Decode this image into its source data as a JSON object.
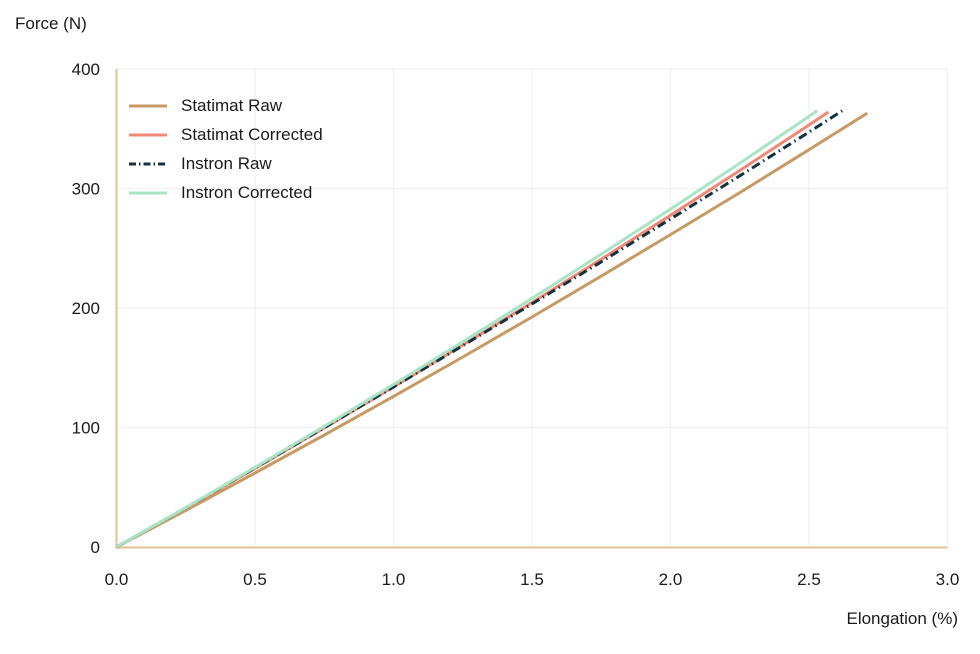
{
  "chart_data": {
    "type": "line",
    "title": "",
    "xlabel": "Elongation (%)",
    "ylabel": "Force (N)",
    "xlim": [
      0.0,
      3.0
    ],
    "ylim": [
      0,
      400
    ],
    "x_ticks": [
      "0.0",
      "0.5",
      "1.0",
      "1.5",
      "2.0",
      "2.5",
      "3.0"
    ],
    "y_ticks": [
      "0",
      "100",
      "200",
      "300",
      "400"
    ],
    "grid": true,
    "legend_position": "top-left-inside",
    "colors": {
      "axis": "#E4C59C",
      "grid": "#F0F0F0",
      "text": "#1A1A1A",
      "background": "#FFFFFF"
    },
    "series": [
      {
        "name": "Statimat Raw",
        "color": "#C79A63",
        "dash": null,
        "legend_dash": null,
        "points": [
          [
            0,
            0
          ],
          [
            0.25,
            30.6
          ],
          [
            0.5,
            61.9
          ],
          [
            0.75,
            93.7
          ],
          [
            1,
            126
          ],
          [
            1.25,
            159
          ],
          [
            1.5,
            192.5
          ],
          [
            1.75,
            226.7
          ],
          [
            2,
            261.4
          ],
          [
            2.25,
            296.6
          ],
          [
            2.5,
            332.5
          ],
          [
            2.71,
            363
          ]
        ]
      },
      {
        "name": "Statimat Corrected",
        "color": "#F08878",
        "dash": null,
        "legend_dash": null,
        "points": [
          [
            0,
            0
          ],
          [
            0.25,
            32.6
          ],
          [
            0.5,
            65.8
          ],
          [
            0.75,
            99.6
          ],
          [
            1,
            134
          ],
          [
            1.25,
            169
          ],
          [
            1.5,
            204.6
          ],
          [
            1.75,
            240.8
          ],
          [
            2,
            277.6
          ],
          [
            2.25,
            315.1
          ],
          [
            2.5,
            353.1
          ],
          [
            2.57,
            364
          ]
        ]
      },
      {
        "name": "Instron Raw",
        "color": "#14333F",
        "dash": "9 4 1.5 4",
        "legend_dash": "7 3 1.5 3",
        "points": [
          [
            0,
            0
          ],
          [
            0.25,
            32.9
          ],
          [
            0.5,
            66.2
          ],
          [
            0.75,
            99.9
          ],
          [
            1,
            134
          ],
          [
            1.25,
            168.5
          ],
          [
            1.5,
            203.4
          ],
          [
            1.75,
            238.7
          ],
          [
            2,
            274.5
          ],
          [
            2.25,
            310.6
          ],
          [
            2.5,
            347.2
          ],
          [
            2.62,
            365
          ]
        ]
      },
      {
        "name": "Instron Corrected",
        "color": "#A7E5C6",
        "dash": null,
        "legend_dash": null,
        "points": [
          [
            0,
            0
          ],
          [
            0.25,
            33
          ],
          [
            0.5,
            66.7
          ],
          [
            0.75,
            101
          ],
          [
            1,
            136
          ],
          [
            1.25,
            171.7
          ],
          [
            1.5,
            208.1
          ],
          [
            1.75,
            245.1
          ],
          [
            2,
            282.8
          ],
          [
            2.25,
            321.2
          ],
          [
            2.5,
            360.3
          ],
          [
            2.53,
            365
          ]
        ]
      }
    ]
  }
}
